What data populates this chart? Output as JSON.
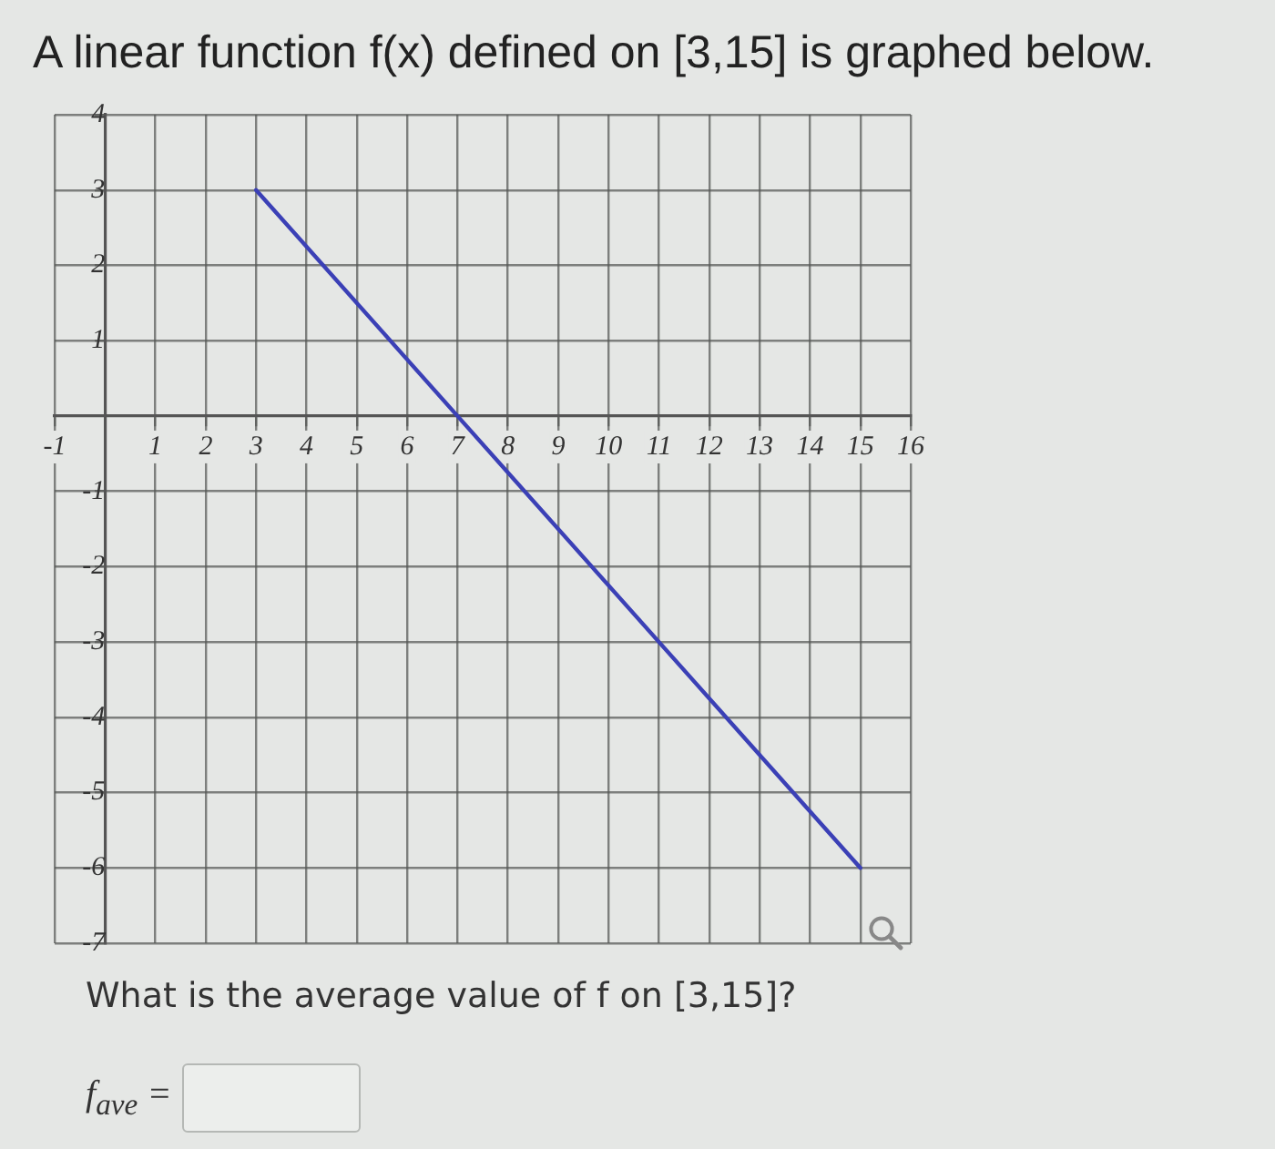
{
  "chart_data": {
    "type": "line",
    "title": "A linear function f(x) defined on [3,15] is graphed below.",
    "x": [
      3,
      15
    ],
    "values": [
      3,
      -6
    ],
    "color": "#3b40b6",
    "xlim": [
      -1,
      16
    ],
    "xticks": [
      -1,
      1,
      2,
      3,
      4,
      5,
      6,
      7,
      8,
      9,
      10,
      11,
      12,
      13,
      14,
      15,
      16
    ],
    "ylim": [
      -7,
      4
    ],
    "yticks": [
      -7,
      -6,
      -5,
      -4,
      -3,
      -2,
      -1,
      1,
      2,
      3,
      4
    ],
    "grid": true,
    "marker": "none",
    "line_style": "solid",
    "annotations": [
      "What is the average value of f on [3,15]?",
      "f$_{ave}$ ="
    ]
  }
}
